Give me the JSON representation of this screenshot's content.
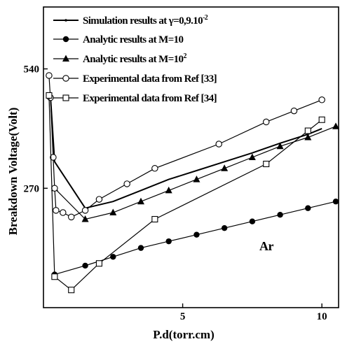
{
  "chart_data": {
    "type": "line",
    "xlabel": "P.d(torr.cm)",
    "ylabel": "Breakdown Voltage(Volt)",
    "xlim": [
      0,
      10.6
    ],
    "ylim": [
      0,
      680
    ],
    "xticks": [
      5,
      10
    ],
    "yticks": [
      270,
      540
    ],
    "xtick_labels": [
      "5",
      "10"
    ],
    "ytick_labels": [
      "270",
      "540"
    ],
    "annotation": "Ar",
    "legend_position": "top-right",
    "series": [
      {
        "name": "Simulation results at γ=0,9.10",
        "name_sup": "-2",
        "marker": "dot",
        "x": [
          0.25,
          0.4,
          1.5,
          2.5,
          3.5,
          4.5,
          5.5,
          6.5,
          7.5,
          8.5,
          9.5,
          10.0
        ],
        "y": [
          480,
          330,
          225,
          240,
          265,
          290,
          310,
          330,
          350,
          372,
          392,
          405
        ]
      },
      {
        "name": "Analytic results at M=10",
        "marker": "filled-circle",
        "x": [
          0.4,
          1.5,
          2.5,
          3.5,
          4.5,
          5.5,
          6.5,
          7.5,
          8.5,
          9.5,
          10.5
        ],
        "y": [
          75,
          95,
          115,
          135,
          150,
          165,
          180,
          195,
          210,
          225,
          240
        ]
      },
      {
        "name": "Analytic results at M=10",
        "name_sup": "2",
        "marker": "filled-triangle",
        "x": [
          0.4,
          1.5,
          2.5,
          3.5,
          4.5,
          5.5,
          6.5,
          7.5,
          8.5,
          9.5,
          10.5
        ],
        "y": [
          270,
          200,
          215,
          240,
          265,
          290,
          315,
          340,
          365,
          385,
          410
        ]
      },
      {
        "name": "Experimental data from Ref [33]",
        "marker": "open-circle",
        "x": [
          0.2,
          0.25,
          0.35,
          0.4,
          0.45,
          0.7,
          1.0,
          1.5,
          2.0,
          3.0,
          4.0,
          6.3,
          8.0,
          9.0,
          10.0
        ],
        "y": [
          525,
          475,
          340,
          270,
          220,
          215,
          205,
          220,
          245,
          280,
          315,
          370,
          420,
          445,
          470
        ]
      },
      {
        "name": "Experimental data from Ref [34]",
        "marker": "open-square",
        "x": [
          0.2,
          0.4,
          1.0,
          2.0,
          4.0,
          8.0,
          9.5,
          10.0
        ],
        "y": [
          480,
          70,
          40,
          100,
          200,
          325,
          400,
          425
        ]
      }
    ]
  }
}
